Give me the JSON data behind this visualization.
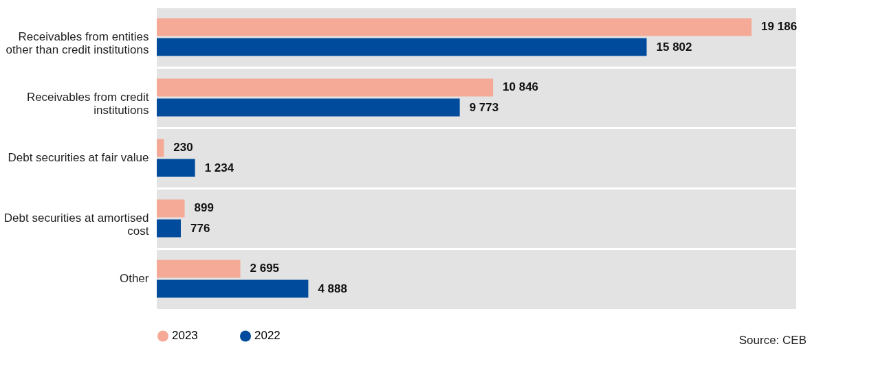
{
  "chart_data": {
    "type": "bar",
    "orientation": "horizontal",
    "categories": [
      "Receivables from entities other than credit institutions",
      "Receivables from credit institutions",
      "Debt securities at fair value",
      "Debt securities at amortised cost",
      "Other"
    ],
    "series": [
      {
        "name": "2023",
        "color": "#f4aa96",
        "values": [
          19186,
          10846,
          230,
          899,
          2695
        ],
        "value_labels": [
          "19 186",
          "10 846",
          "230",
          "899",
          "2 695"
        ]
      },
      {
        "name": "2022",
        "color": "#004b9b",
        "values": [
          15802,
          9773,
          1234,
          776,
          4888
        ],
        "value_labels": [
          "15 802",
          "9 773",
          "1 234",
          "776",
          "4 888"
        ]
      }
    ],
    "legend": "bottom",
    "annotations": [
      "Source: CEB"
    ]
  }
}
